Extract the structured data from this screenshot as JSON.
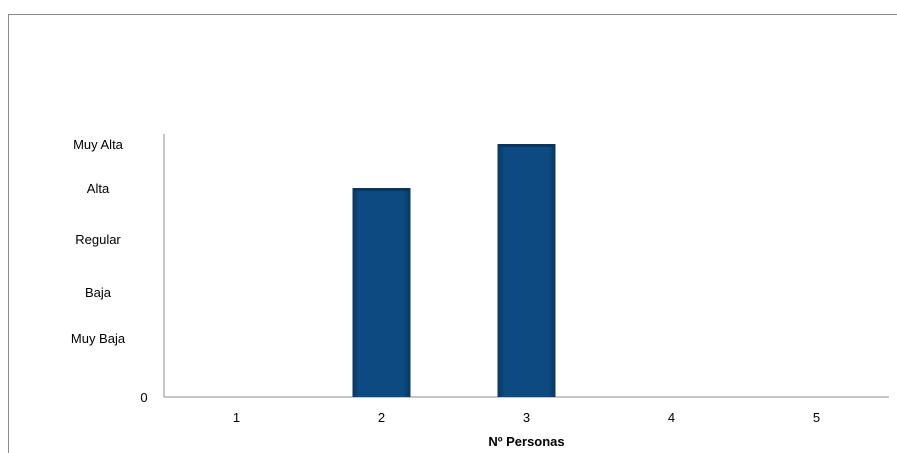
{
  "chart_data": {
    "type": "bar",
    "title": "",
    "xlabel": "Nº Personas",
    "ylabel": "",
    "categories": [
      "1",
      "2",
      "3",
      "4",
      "5"
    ],
    "values": [
      0,
      4,
      5,
      0,
      0
    ],
    "y_tick_labels": [
      "0",
      "Muy Baja",
      "Baja",
      "Regular",
      "Alta",
      "Muy Alta"
    ],
    "ylim": [
      0,
      5
    ],
    "grid": false,
    "legend": "none",
    "bar_color": "#0d4a82",
    "bar_color_dark": "#093660"
  }
}
